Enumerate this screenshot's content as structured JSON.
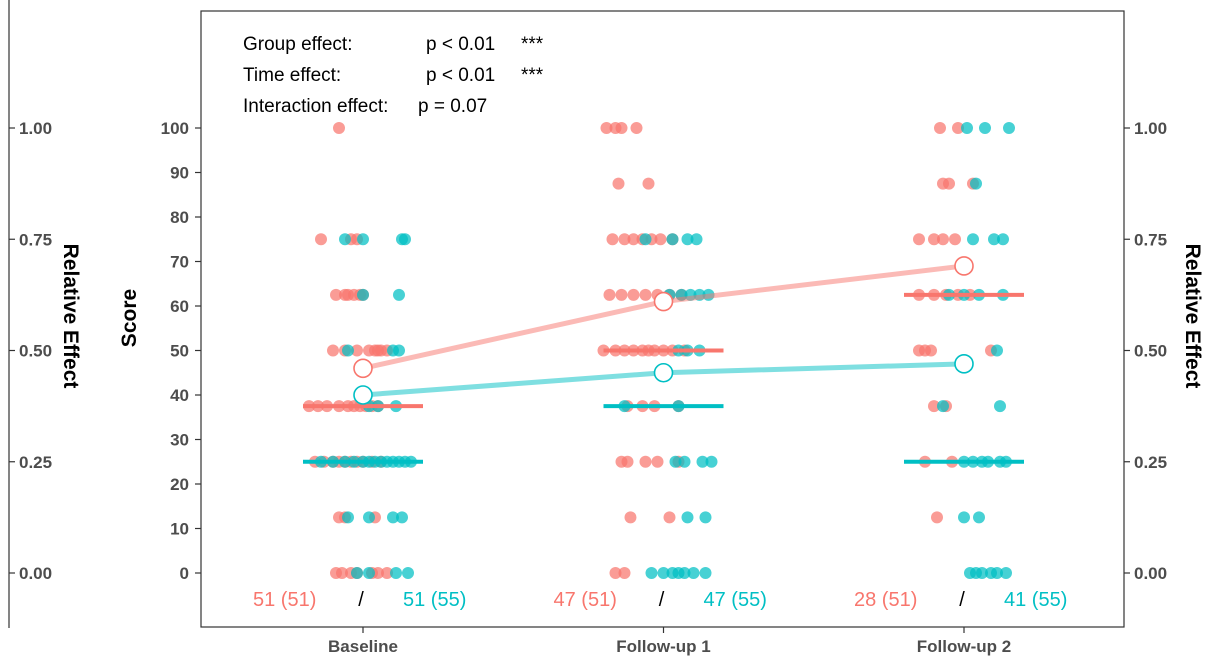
{
  "colors": {
    "group1": "#F8766D",
    "group2": "#00BFC4",
    "axis": "#333333",
    "tick_text": "#4d4d4d"
  },
  "annotations": [
    {
      "label": "Group effect:",
      "value": "p < 0.01",
      "stars": "***"
    },
    {
      "label": "Time effect:",
      "value": "p < 0.01",
      "stars": "***"
    },
    {
      "label": "Interaction effect:",
      "value": "p = 0.07",
      "stars": ""
    }
  ],
  "chart_data": {
    "type": "scatter",
    "categories": [
      "Baseline",
      "Follow-up 1",
      "Follow-up 2"
    ],
    "ylabel": "Score",
    "ylim": [
      0,
      100
    ],
    "yticks": [
      "0",
      "10",
      "20",
      "30",
      "40",
      "50",
      "60",
      "70",
      "80",
      "90",
      "100"
    ],
    "secondary_axis": {
      "label": "Relative Effect",
      "ylim": [
        0,
        1
      ],
      "ticks": [
        "0.00",
        "0.25",
        "0.50",
        "0.75",
        "1.00"
      ]
    },
    "grid": false,
    "medians": [
      {
        "group": "group1",
        "values": [
          37.5,
          50,
          62.5
        ]
      },
      {
        "group": "group2",
        "values": [
          25,
          37.5,
          25
        ]
      }
    ],
    "relative_effects": [
      {
        "group": "group1",
        "values": [
          0.46,
          0.61,
          0.69
        ]
      },
      {
        "group": "group2",
        "values": [
          0.4,
          0.45,
          0.47
        ]
      }
    ],
    "counts": [
      {
        "group1": "51 (51)",
        "sep": "/",
        "group2": "51 (55)"
      },
      {
        "group1": "47 (51)",
        "sep": "/",
        "group2": "47 (55)"
      },
      {
        "group1": "28 (51)",
        "sep": "/",
        "group2": "41 (55)"
      }
    ],
    "points": {
      "group1": [
        [
          0,
          -0.08,
          100
        ],
        [
          0,
          -0.14,
          75
        ],
        [
          0,
          -0.04,
          75
        ],
        [
          0,
          -0.02,
          75
        ],
        [
          0,
          -0.09,
          62.5
        ],
        [
          0,
          -0.06,
          62.5
        ],
        [
          0,
          -0.05,
          62.5
        ],
        [
          0,
          -0.03,
          62.5
        ],
        [
          0,
          -0.01,
          62.5
        ],
        [
          0,
          0.0,
          62.5
        ],
        [
          0,
          -0.1,
          50
        ],
        [
          0,
          -0.06,
          50
        ],
        [
          0,
          -0.02,
          50
        ],
        [
          0,
          0.02,
          50
        ],
        [
          0,
          0.04,
          50
        ],
        [
          0,
          0.05,
          50
        ],
        [
          0,
          0.06,
          50
        ],
        [
          0,
          0.08,
          50
        ],
        [
          0,
          -0.18,
          37.5
        ],
        [
          0,
          -0.15,
          37.5
        ],
        [
          0,
          -0.12,
          37.5
        ],
        [
          0,
          -0.08,
          37.5
        ],
        [
          0,
          -0.05,
          37.5
        ],
        [
          0,
          -0.03,
          37.5
        ],
        [
          0,
          -0.01,
          37.5
        ],
        [
          0,
          0.01,
          37.5
        ],
        [
          0,
          0.03,
          37.5
        ],
        [
          0,
          0.05,
          37.5
        ],
        [
          0,
          -0.16,
          25
        ],
        [
          0,
          -0.13,
          25
        ],
        [
          0,
          -0.1,
          25
        ],
        [
          0,
          -0.08,
          25
        ],
        [
          0,
          -0.06,
          25
        ],
        [
          0,
          -0.04,
          25
        ],
        [
          0,
          -0.02,
          25
        ],
        [
          0,
          0.0,
          25
        ],
        [
          0,
          0.03,
          25
        ],
        [
          0,
          0.06,
          25
        ],
        [
          0,
          -0.08,
          12.5
        ],
        [
          0,
          -0.06,
          12.5
        ],
        [
          0,
          0.04,
          12.5
        ],
        [
          0,
          -0.09,
          0
        ],
        [
          0,
          -0.07,
          0
        ],
        [
          0,
          -0.04,
          0
        ],
        [
          0,
          -0.02,
          0
        ],
        [
          0,
          0.03,
          0
        ],
        [
          0,
          0.05,
          0
        ],
        [
          0,
          0.08,
          0
        ],
        [
          1,
          -0.19,
          100
        ],
        [
          1,
          -0.16,
          100
        ],
        [
          1,
          -0.14,
          100
        ],
        [
          1,
          -0.09,
          100
        ],
        [
          1,
          -0.15,
          87.5
        ],
        [
          1,
          -0.05,
          87.5
        ],
        [
          1,
          -0.17,
          75
        ],
        [
          1,
          -0.13,
          75
        ],
        [
          1,
          -0.1,
          75
        ],
        [
          1,
          -0.07,
          75
        ],
        [
          1,
          -0.04,
          75
        ],
        [
          1,
          -0.01,
          75
        ],
        [
          1,
          0.03,
          75
        ],
        [
          1,
          -0.18,
          62.5
        ],
        [
          1,
          -0.14,
          62.5
        ],
        [
          1,
          -0.1,
          62.5
        ],
        [
          1,
          -0.06,
          62.5
        ],
        [
          1,
          -0.02,
          62.5
        ],
        [
          1,
          0.02,
          62.5
        ],
        [
          1,
          0.06,
          62.5
        ],
        [
          1,
          -0.2,
          50
        ],
        [
          1,
          -0.16,
          50
        ],
        [
          1,
          -0.13,
          50
        ],
        [
          1,
          -0.1,
          50
        ],
        [
          1,
          -0.07,
          50
        ],
        [
          1,
          -0.05,
          50
        ],
        [
          1,
          -0.03,
          50
        ],
        [
          1,
          0.0,
          50
        ],
        [
          1,
          0.03,
          50
        ],
        [
          1,
          0.07,
          50
        ],
        [
          1,
          -0.12,
          37.5
        ],
        [
          1,
          -0.07,
          37.5
        ],
        [
          1,
          -0.03,
          37.5
        ],
        [
          1,
          0.05,
          37.5
        ],
        [
          1,
          -0.14,
          25
        ],
        [
          1,
          -0.12,
          25
        ],
        [
          1,
          -0.06,
          25
        ],
        [
          1,
          -0.02,
          25
        ],
        [
          1,
          0.05,
          25
        ],
        [
          1,
          -0.11,
          12.5
        ],
        [
          1,
          0.02,
          12.5
        ],
        [
          1,
          -0.16,
          0
        ],
        [
          1,
          -0.13,
          0
        ],
        [
          2,
          -0.08,
          100
        ],
        [
          2,
          -0.02,
          100
        ],
        [
          2,
          -0.07,
          87.5
        ],
        [
          2,
          -0.05,
          87.5
        ],
        [
          2,
          0.03,
          87.5
        ],
        [
          2,
          -0.15,
          75
        ],
        [
          2,
          -0.1,
          75
        ],
        [
          2,
          -0.07,
          75
        ],
        [
          2,
          -0.03,
          75
        ],
        [
          2,
          -0.15,
          62.5
        ],
        [
          2,
          -0.1,
          62.5
        ],
        [
          2,
          -0.06,
          62.5
        ],
        [
          2,
          -0.02,
          62.5
        ],
        [
          2,
          0.02,
          62.5
        ],
        [
          2,
          -0.15,
          50
        ],
        [
          2,
          -0.13,
          50
        ],
        [
          2,
          -0.11,
          50
        ],
        [
          2,
          0.09,
          50
        ],
        [
          2,
          -0.1,
          37.5
        ],
        [
          2,
          -0.06,
          37.5
        ],
        [
          2,
          -0.13,
          25
        ],
        [
          2,
          -0.04,
          25
        ],
        [
          2,
          -0.09,
          12.5
        ]
      ],
      "group2": [
        [
          0,
          -0.06,
          75
        ],
        [
          0,
          0.0,
          75
        ],
        [
          0,
          0.13,
          75
        ],
        [
          0,
          0.14,
          75
        ],
        [
          0,
          0.0,
          62.5
        ],
        [
          0,
          0.12,
          62.5
        ],
        [
          0,
          -0.05,
          50
        ],
        [
          0,
          0.1,
          50
        ],
        [
          0,
          0.12,
          50
        ],
        [
          0,
          0.02,
          37.5
        ],
        [
          0,
          0.05,
          37.5
        ],
        [
          0,
          0.11,
          37.5
        ],
        [
          0,
          -0.14,
          25
        ],
        [
          0,
          -0.1,
          25
        ],
        [
          0,
          -0.06,
          25
        ],
        [
          0,
          -0.03,
          25
        ],
        [
          0,
          0.0,
          25
        ],
        [
          0,
          0.02,
          25
        ],
        [
          0,
          0.04,
          25
        ],
        [
          0,
          0.06,
          25
        ],
        [
          0,
          0.08,
          25
        ],
        [
          0,
          0.1,
          25
        ],
        [
          0,
          0.12,
          25
        ],
        [
          0,
          0.14,
          25
        ],
        [
          0,
          0.16,
          25
        ],
        [
          0,
          -0.05,
          12.5
        ],
        [
          0,
          0.02,
          12.5
        ],
        [
          0,
          0.1,
          12.5
        ],
        [
          0,
          0.13,
          12.5
        ],
        [
          0,
          -0.02,
          0
        ],
        [
          0,
          0.02,
          0
        ],
        [
          0,
          0.11,
          0
        ],
        [
          0,
          0.15,
          0
        ],
        [
          1,
          -0.06,
          75
        ],
        [
          1,
          0.03,
          75
        ],
        [
          1,
          0.08,
          75
        ],
        [
          1,
          0.11,
          75
        ],
        [
          1,
          0.02,
          62.5
        ],
        [
          1,
          0.06,
          62.5
        ],
        [
          1,
          0.09,
          62.5
        ],
        [
          1,
          0.12,
          62.5
        ],
        [
          1,
          0.15,
          62.5
        ],
        [
          1,
          0.05,
          50
        ],
        [
          1,
          0.08,
          50
        ],
        [
          1,
          0.12,
          50
        ],
        [
          1,
          -0.13,
          37.5
        ],
        [
          1,
          0.05,
          37.5
        ],
        [
          1,
          0.04,
          25
        ],
        [
          1,
          0.07,
          25
        ],
        [
          1,
          0.13,
          25
        ],
        [
          1,
          0.16,
          25
        ],
        [
          1,
          0.08,
          12.5
        ],
        [
          1,
          0.14,
          12.5
        ],
        [
          1,
          -0.04,
          0
        ],
        [
          1,
          0.0,
          0
        ],
        [
          1,
          0.03,
          0
        ],
        [
          1,
          0.05,
          0
        ],
        [
          1,
          0.07,
          0
        ],
        [
          1,
          0.1,
          0
        ],
        [
          1,
          0.14,
          0
        ],
        [
          2,
          0.01,
          100
        ],
        [
          2,
          0.07,
          100
        ],
        [
          2,
          0.15,
          100
        ],
        [
          2,
          0.04,
          87.5
        ],
        [
          2,
          0.03,
          75
        ],
        [
          2,
          0.1,
          75
        ],
        [
          2,
          0.13,
          75
        ],
        [
          2,
          -0.05,
          62.5
        ],
        [
          2,
          0.0,
          62.5
        ],
        [
          2,
          0.05,
          62.5
        ],
        [
          2,
          0.13,
          62.5
        ],
        [
          2,
          0.11,
          50
        ],
        [
          2,
          -0.07,
          37.5
        ],
        [
          2,
          0.12,
          37.5
        ],
        [
          2,
          0.0,
          25
        ],
        [
          2,
          0.03,
          25
        ],
        [
          2,
          0.06,
          25
        ],
        [
          2,
          0.08,
          25
        ],
        [
          2,
          0.12,
          25
        ],
        [
          2,
          0.14,
          25
        ],
        [
          2,
          0.0,
          12.5
        ],
        [
          2,
          0.05,
          12.5
        ],
        [
          2,
          0.02,
          0
        ],
        [
          2,
          0.04,
          0
        ],
        [
          2,
          0.06,
          0
        ],
        [
          2,
          0.09,
          0
        ],
        [
          2,
          0.11,
          0
        ],
        [
          2,
          0.14,
          0
        ]
      ]
    }
  }
}
